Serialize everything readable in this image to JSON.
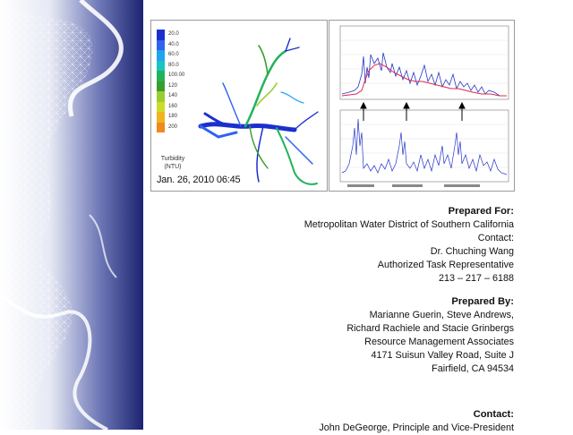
{
  "figure_map": {
    "legend_values": [
      "20.0",
      "40.0",
      "60.0",
      "80.0",
      "100.00",
      "120",
      "140",
      "160",
      "180",
      "200"
    ],
    "legend_colors": [
      "#1b2fd0",
      "#2f63f0",
      "#22a3ef",
      "#19c4c4",
      "#22b35a",
      "#3a9e2c",
      "#9ccd2e",
      "#cddc2a",
      "#f0b41c",
      "#f08a1a"
    ],
    "legend_title": "Turbidity (NTU)",
    "timestamp": "Jan. 26, 2010 06:45"
  },
  "prepared_for": {
    "heading": "Prepared For:",
    "organization": "Metropolitan Water District of Southern California",
    "contact_label": "Contact:",
    "contact_name": "Dr. Chuching Wang",
    "contact_title": "Authorized Task Representative",
    "phone": "213 – 217 – 6188"
  },
  "prepared_by": {
    "heading": "Prepared By:",
    "authors_line1": "Marianne Guerin, Steve Andrews,",
    "authors_line2": "Richard Rachiele and Stacie Grinbergs",
    "company": "Resource Management Associates",
    "address": "4171 Suisun Valley Road, Suite J",
    "city": "Fairfield, CA 94534"
  },
  "contact": {
    "heading": "Contact:",
    "name_line": "John DeGeorge, Principle and Vice-President"
  }
}
